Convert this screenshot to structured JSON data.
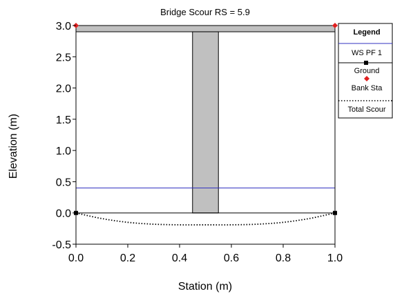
{
  "chart_data": {
    "type": "line",
    "title": "Bridge Scour RS = 5.9",
    "xlabel": "Station (m)",
    "ylabel": "Elevation (m)",
    "xlim": [
      0.0,
      1.0
    ],
    "ylim": [
      -0.5,
      3.0
    ],
    "x_ticks": [
      "0.0",
      "0.2",
      "0.4",
      "0.6",
      "0.8",
      "1.0"
    ],
    "y_ticks": [
      "3.0",
      "2.5",
      "2.0",
      "1.5",
      "1.0",
      "0.5",
      "0.0",
      "-0.5"
    ],
    "grid": false,
    "legend": {
      "title": "Legend",
      "placement": "right",
      "entries": [
        "WS PF 1",
        "Ground",
        "Bank Sta",
        "Total Scour"
      ]
    },
    "series": [
      {
        "name": "WS PF 1",
        "color": "#3030c0",
        "x": [
          0.0,
          1.0
        ],
        "y": [
          0.4,
          0.4
        ]
      },
      {
        "name": "Ground",
        "color": "#000000",
        "x": [
          0.0,
          1.0
        ],
        "y": [
          0.0,
          0.0
        ]
      },
      {
        "name": "Bank Sta",
        "color": "#e02020",
        "x": [
          0.0,
          1.0
        ],
        "y": [
          3.0,
          3.0
        ]
      },
      {
        "name": "Total Scour",
        "color": "#000000",
        "x": [
          0.0,
          0.1,
          0.2,
          0.3,
          0.4,
          0.5,
          0.6,
          0.7,
          0.8,
          0.9,
          1.0
        ],
        "y": [
          0.0,
          -0.09,
          -0.15,
          -0.18,
          -0.19,
          -0.19,
          -0.19,
          -0.18,
          -0.15,
          -0.09,
          0.0
        ]
      }
    ],
    "deck": {
      "x": [
        0.0,
        1.0
      ],
      "y": [
        2.9,
        3.0
      ],
      "color": "#c0c0c0"
    },
    "pier": {
      "x": [
        0.45,
        0.55
      ],
      "y": [
        0.0,
        2.9
      ],
      "color": "#c0c0c0"
    }
  }
}
